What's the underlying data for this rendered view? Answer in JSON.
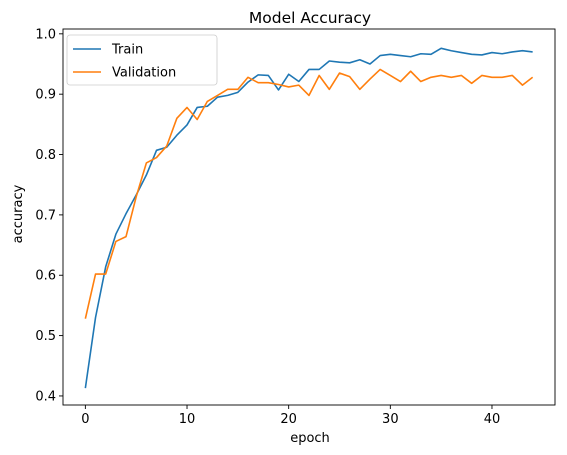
{
  "chart_data": {
    "type": "line",
    "title": "Model Accuracy",
    "xlabel": "epoch",
    "ylabel": "accuracy",
    "xlim": [
      -2.2,
      46.2
    ],
    "ylim": [
      0.385,
      1.008
    ],
    "xticks": [
      0,
      10,
      20,
      30,
      40
    ],
    "yticks": [
      0.4,
      0.5,
      0.6,
      0.7,
      0.8,
      0.9,
      1.0
    ],
    "ytick_labels": [
      "0.4",
      "0.5",
      "0.6",
      "0.7",
      "0.8",
      "0.9",
      "1.0"
    ],
    "grid": false,
    "legend_position": "upper left",
    "x": [
      0,
      1,
      2,
      3,
      4,
      5,
      6,
      7,
      8,
      9,
      10,
      11,
      12,
      13,
      14,
      15,
      16,
      17,
      18,
      19,
      20,
      21,
      22,
      23,
      24,
      25,
      26,
      27,
      28,
      29,
      30,
      31,
      32,
      33,
      34,
      35,
      36,
      37,
      38,
      39,
      40,
      41,
      42,
      43,
      44
    ],
    "series": [
      {
        "name": "Train",
        "color": "#1f77b4",
        "values": [
          0.413,
          0.53,
          0.614,
          0.668,
          0.702,
          0.733,
          0.766,
          0.807,
          0.812,
          0.832,
          0.849,
          0.878,
          0.88,
          0.895,
          0.898,
          0.903,
          0.92,
          0.932,
          0.931,
          0.907,
          0.933,
          0.921,
          0.941,
          0.941,
          0.955,
          0.953,
          0.952,
          0.957,
          0.95,
          0.964,
          0.966,
          0.964,
          0.962,
          0.967,
          0.966,
          0.976,
          0.972,
          0.969,
          0.966,
          0.965,
          0.969,
          0.967,
          0.97,
          0.972,
          0.97
        ]
      },
      {
        "name": "Validation",
        "color": "#ff7f0e",
        "values": [
          0.528,
          0.602,
          0.602,
          0.656,
          0.664,
          0.73,
          0.786,
          0.795,
          0.814,
          0.86,
          0.878,
          0.858,
          0.888,
          0.898,
          0.908,
          0.908,
          0.928,
          0.919,
          0.919,
          0.916,
          0.912,
          0.915,
          0.898,
          0.931,
          0.908,
          0.935,
          0.929,
          0.908,
          0.925,
          0.941,
          0.931,
          0.921,
          0.938,
          0.921,
          0.928,
          0.931,
          0.928,
          0.931,
          0.918,
          0.931,
          0.928,
          0.928,
          0.931,
          0.915,
          0.928
        ]
      }
    ]
  }
}
